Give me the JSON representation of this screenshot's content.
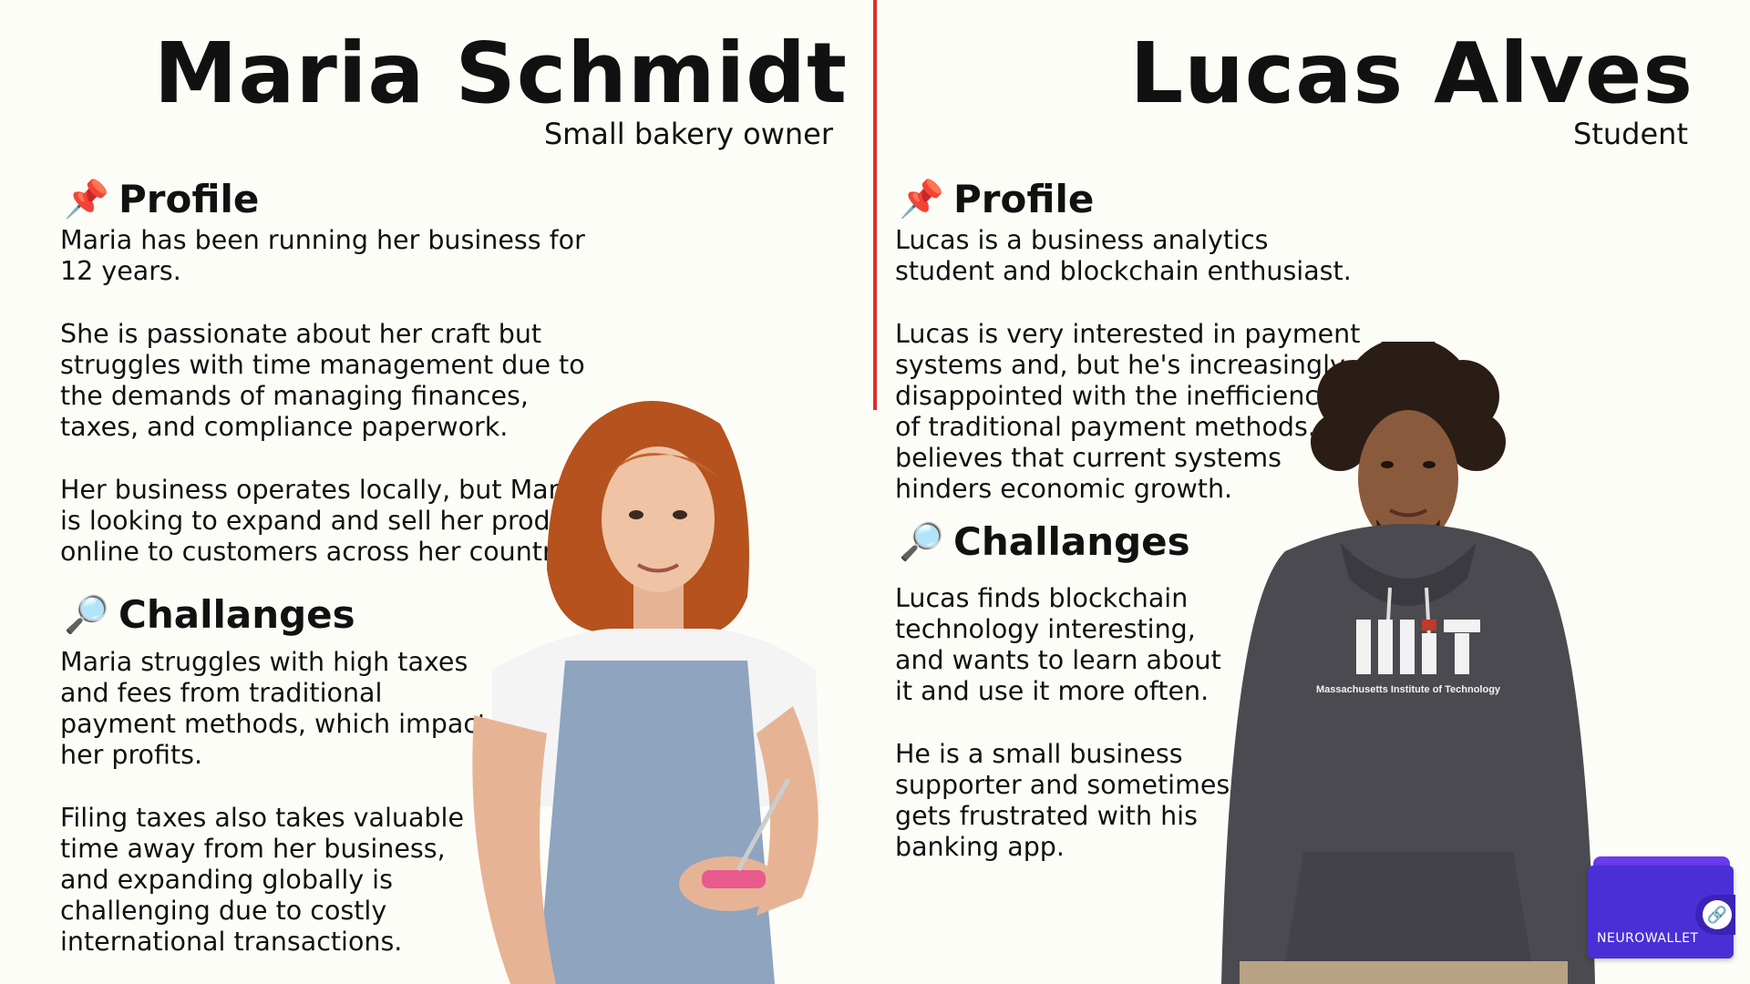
{
  "personas": [
    {
      "name": "Maria Schmidt",
      "role": "Small bakery owner",
      "profile_heading": "Profile",
      "profile_icon": "pushpin-icon",
      "profile_paragraphs": [
        "Maria has been running her business for\n12 years.",
        "She is passionate about her craft but\nstruggles with time management due to\nthe demands of managing finances,\ntaxes, and compliance paperwork.",
        "Her business operates locally, but Maria\nis looking to expand and sell her products\nonline to customers across her country."
      ],
      "challenges_heading": "Challanges",
      "challenges_icon": "magnifying-glass-icon",
      "challenges_paragraphs": [
        "Maria struggles with high taxes\nand fees from traditional\npayment methods, which impact\nher profits.",
        "Filing taxes also takes valuable\ntime away from her business,\nand expanding globally is\nchallenging due to costly\ninternational transactions."
      ]
    },
    {
      "name": "Lucas Alves",
      "role": "Student",
      "profile_heading": "Profile",
      "profile_icon": "pushpin-icon",
      "profile_paragraphs": [
        "Lucas is a business analytics\nstudent and blockchain enthusiast.",
        "Lucas is very interested in payment\nsystems and, but he's increasingly\ndisappointed with the inefficiencies\nof traditional payment methods. He\nbelieves that current systems\nhinders economic growth."
      ],
      "challenges_heading": "Challanges",
      "challenges_icon": "magnifying-glass-icon",
      "challenges_paragraphs": [
        "Lucas finds blockchain\ntechnology interesting,\nand wants to learn about\nit and use it more often.",
        "He is a small business\nsupporter and sometimes\ngets frustrated with his\nbanking app."
      ],
      "hoodie_text": "Massachusetts Institute of Technology"
    }
  ],
  "brand": {
    "logo_text": "NEUROWALLET",
    "logo_color": "#4b2fd6",
    "accent_color": "#d9302b"
  }
}
